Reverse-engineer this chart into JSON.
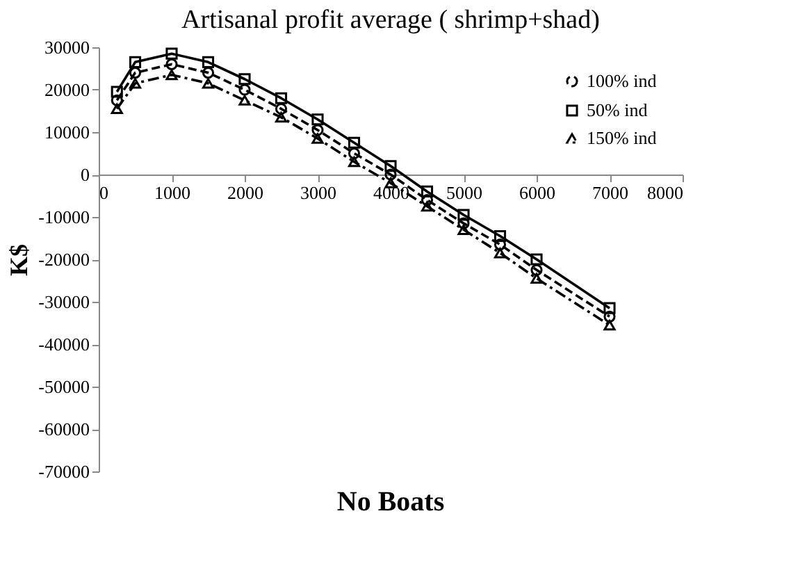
{
  "chart_data": {
    "type": "line",
    "title": "Artisanal profit average ( shrimp+shad)",
    "xlabel": "No Boats",
    "ylabel": "K$",
    "x": [
      250,
      500,
      1000,
      1500,
      2000,
      2500,
      3000,
      3500,
      4000,
      4500,
      5000,
      5500,
      6000,
      7000
    ],
    "series": [
      {
        "name": "100% ind",
        "color": "#000000",
        "marker": "circle",
        "line_style": "dashed",
        "values": [
          17500,
          24000,
          26000,
          24000,
          20000,
          15500,
          10500,
          5000,
          0,
          -6000,
          -11500,
          -16500,
          -22500,
          -33500
        ]
      },
      {
        "name": "50% ind",
        "color": "#000000",
        "marker": "square",
        "line_style": "solid",
        "values": [
          19500,
          26500,
          28500,
          26500,
          22500,
          18000,
          13000,
          7500,
          2000,
          -4000,
          -9500,
          -14500,
          -20000,
          -31500
        ]
      },
      {
        "name": "150% ind",
        "color": "#000000",
        "marker": "triangle",
        "line_style": "dashdot",
        "values": [
          15500,
          21500,
          23500,
          21500,
          17500,
          13500,
          8500,
          3000,
          -2000,
          -7500,
          -13000,
          -18500,
          -24500,
          -35500
        ]
      }
    ],
    "xlim": [
      0,
      8000
    ],
    "xticks": [
      0,
      1000,
      2000,
      3000,
      4000,
      5000,
      6000,
      7000,
      8000
    ],
    "ylim": [
      -70000,
      30000
    ],
    "yticks": [
      -70000,
      -60000,
      -50000,
      -40000,
      -30000,
      -20000,
      -10000,
      0,
      10000,
      20000,
      30000
    ],
    "grid": false,
    "legend": "top right"
  }
}
